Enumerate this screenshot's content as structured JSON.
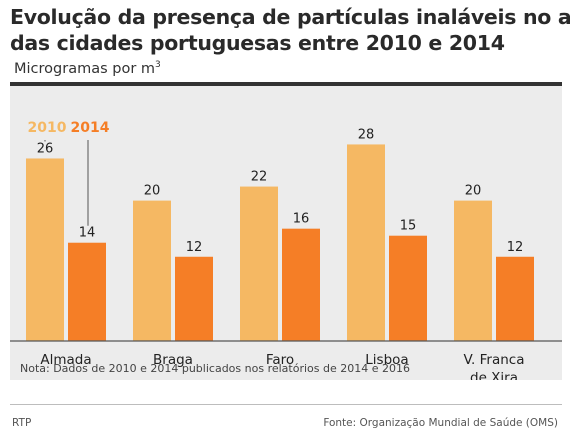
{
  "header": {
    "title_line1": "Evolução da presença de partículas inaláveis no ar",
    "title_line2": "das cidades portuguesas entre 2010 e 2014",
    "unit_text": "Microgramas por m",
    "unit_superscript": "3"
  },
  "chart_data": {
    "type": "bar",
    "categories": [
      "Almada",
      "Braga",
      "Faro",
      "Lisboa",
      "V. Franca de Xira"
    ],
    "category_label_lines": [
      [
        "Almada"
      ],
      [
        "Braga"
      ],
      [
        "Faro"
      ],
      [
        "Lisboa"
      ],
      [
        "V. Franca",
        "de Xira"
      ]
    ],
    "series": [
      {
        "name": "2010",
        "values": [
          26,
          20,
          22,
          28,
          20
        ],
        "color": "#f5b863"
      },
      {
        "name": "2014",
        "values": [
          14,
          12,
          16,
          15,
          12
        ],
        "color": "#f57e26"
      }
    ],
    "ylim": [
      0,
      35
    ],
    "legend": "top-left",
    "grid": false,
    "note": "Nota: Dados de 2010 e 2014 publicados nos relatórios de 2014 e 2016"
  },
  "footer": {
    "left": "RTP",
    "right": "Fonte: Organização Mundial de Saúde (OMS)"
  },
  "colors": {
    "bar_2010": "#f5b863",
    "bar_2014": "#f57e26",
    "background": "#ececec",
    "text": "#222222"
  }
}
